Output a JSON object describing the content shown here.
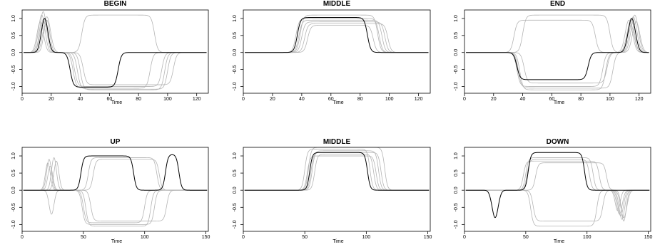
{
  "chart_data": [
    {
      "type": "line",
      "title": "BEGIN",
      "xlabel": "Time",
      "ylabel": "",
      "xlim": [
        0,
        128
      ],
      "ylim": [
        -1.2,
        1.25
      ],
      "xticks": [
        0,
        20,
        40,
        60,
        80,
        100,
        120
      ],
      "yticks": [
        -1.0,
        -0.5,
        0.0,
        0.5,
        1.0
      ],
      "grid": false,
      "series": [
        {
          "highlight": true,
          "pulses": [
            {
              "start": 11,
              "end": 20,
              "amp": 1.0,
              "shape": "bump"
            },
            {
              "start": 33,
              "end": 66,
              "amp": -1.02,
              "shape": "box"
            }
          ]
        },
        {
          "highlight": false,
          "pulses": [
            {
              "start": 10,
              "end": 19,
              "amp": 1.2,
              "shape": "bump"
            },
            {
              "start": 41,
              "end": 91,
              "amp": 1.1,
              "shape": "box"
            }
          ]
        },
        {
          "highlight": false,
          "pulses": [
            {
              "start": 9,
              "end": 18,
              "amp": 1.1,
              "shape": "bump"
            },
            {
              "start": 36,
              "end": 96,
              "amp": -1.0,
              "shape": "box"
            }
          ]
        },
        {
          "highlight": false,
          "pulses": [
            {
              "start": 12,
              "end": 22,
              "amp": 1.05,
              "shape": "bump"
            },
            {
              "start": 38,
              "end": 100,
              "amp": -1.08,
              "shape": "box"
            }
          ]
        },
        {
          "highlight": false,
          "pulses": [
            {
              "start": 13,
              "end": 21,
              "amp": 0.95,
              "shape": "bump"
            },
            {
              "start": 42,
              "end": 104,
              "amp": -0.95,
              "shape": "box"
            }
          ]
        },
        {
          "highlight": false,
          "pulses": [
            {
              "start": 8,
              "end": 17,
              "amp": 0.9,
              "shape": "bump"
            },
            {
              "start": 35,
              "end": 88,
              "amp": -1.05,
              "shape": "box"
            }
          ]
        },
        {
          "highlight": false,
          "pulses": [
            {
              "start": 10,
              "end": 20,
              "amp": 1.0,
              "shape": "bump"
            },
            {
              "start": 40,
              "end": 98,
              "amp": -1.1,
              "shape": "box"
            }
          ]
        }
      ]
    },
    {
      "type": "line",
      "title": "MIDDLE",
      "xlabel": "Time",
      "ylabel": "",
      "xlim": [
        0,
        128
      ],
      "ylim": [
        -1.2,
        1.25
      ],
      "xticks": [
        0,
        20,
        40,
        60,
        80,
        100,
        120
      ],
      "yticks": [
        -1.0,
        -0.5,
        0.0,
        0.5,
        1.0
      ],
      "grid": false,
      "series": [
        {
          "highlight": true,
          "pulses": [
            {
              "start": 37,
              "end": 85,
              "amp": 1.03,
              "shape": "box"
            }
          ]
        },
        {
          "highlight": false,
          "pulses": [
            {
              "start": 36,
              "end": 93,
              "amp": 1.0,
              "shape": "box"
            }
          ]
        },
        {
          "highlight": false,
          "pulses": [
            {
              "start": 38,
              "end": 95,
              "amp": 0.95,
              "shape": "box"
            }
          ]
        },
        {
          "highlight": false,
          "pulses": [
            {
              "start": 40,
              "end": 97,
              "amp": 0.9,
              "shape": "box"
            }
          ]
        },
        {
          "highlight": false,
          "pulses": [
            {
              "start": 42,
              "end": 99,
              "amp": 0.85,
              "shape": "box"
            }
          ]
        },
        {
          "highlight": false,
          "pulses": [
            {
              "start": 39,
              "end": 92,
              "amp": 1.1,
              "shape": "box"
            }
          ]
        },
        {
          "highlight": false,
          "pulses": [
            {
              "start": 44,
              "end": 89,
              "amp": 0.8,
              "shape": "box"
            }
          ]
        }
      ]
    },
    {
      "type": "line",
      "title": "END",
      "xlabel": "Time",
      "ylabel": "",
      "xlim": [
        0,
        128
      ],
      "ylim": [
        -1.2,
        1.25
      ],
      "xticks": [
        0,
        20,
        40,
        60,
        80,
        100,
        120
      ],
      "yticks": [
        -1.0,
        -0.5,
        0.0,
        0.5,
        1.0
      ],
      "grid": false,
      "series": [
        {
          "highlight": true,
          "pulses": [
            {
              "start": 36,
              "end": 85,
              "amp": -0.8,
              "shape": "box"
            },
            {
              "start": 110,
              "end": 120,
              "amp": 1.0,
              "shape": "bump"
            }
          ]
        },
        {
          "highlight": false,
          "pulses": [
            {
              "start": 36,
              "end": 95,
              "amp": -1.0,
              "shape": "box"
            },
            {
              "start": 108,
              "end": 118,
              "amp": 0.95,
              "shape": "bump"
            }
          ]
        },
        {
          "highlight": false,
          "pulses": [
            {
              "start": 38,
              "end": 97,
              "amp": -1.1,
              "shape": "box"
            },
            {
              "start": 111,
              "end": 121,
              "amp": 1.05,
              "shape": "bump"
            }
          ]
        },
        {
          "highlight": false,
          "pulses": [
            {
              "start": 40,
              "end": 100,
              "amp": 1.1,
              "shape": "box"
            },
            {
              "start": 113,
              "end": 123,
              "amp": 0.9,
              "shape": "bump"
            }
          ]
        },
        {
          "highlight": false,
          "pulses": [
            {
              "start": 37,
              "end": 102,
              "amp": -1.05,
              "shape": "box"
            },
            {
              "start": 109,
              "end": 119,
              "amp": 0.85,
              "shape": "bump"
            }
          ]
        },
        {
          "highlight": false,
          "pulses": [
            {
              "start": 34,
              "end": 90,
              "amp": 0.95,
              "shape": "box"
            },
            {
              "start": 112,
              "end": 122,
              "amp": 1.1,
              "shape": "bump"
            }
          ]
        },
        {
          "highlight": false,
          "pulses": [
            {
              "start": 41,
              "end": 98,
              "amp": -0.9,
              "shape": "box"
            },
            {
              "start": 110,
              "end": 119,
              "amp": 1.0,
              "shape": "bump"
            }
          ]
        }
      ]
    },
    {
      "type": "line",
      "title": "UP",
      "xlabel": "Time",
      "ylabel": "",
      "xlim": [
        0,
        152
      ],
      "ylim": [
        -1.2,
        1.25
      ],
      "xticks": [
        0,
        50,
        100,
        150
      ],
      "yticks": [
        -1.0,
        -0.5,
        0.0,
        0.5,
        1.0
      ],
      "grid": false,
      "series": [
        {
          "highlight": true,
          "pulses": [
            {
              "start": 48,
              "end": 91,
              "amp": 1.0,
              "shape": "box"
            },
            {
              "start": 117,
              "end": 128,
              "amp": 1.05,
              "shape": "box"
            }
          ]
        },
        {
          "highlight": false,
          "pulses": [
            {
              "start": 18,
              "end": 26,
              "amp": 0.9,
              "shape": "bump"
            },
            {
              "start": 50,
              "end": 100,
              "amp": -0.95,
              "shape": "box"
            }
          ]
        },
        {
          "highlight": false,
          "pulses": [
            {
              "start": 20,
              "end": 28,
              "amp": -0.7,
              "shape": "bump"
            },
            {
              "start": 52,
              "end": 105,
              "amp": -1.05,
              "shape": "box"
            }
          ]
        },
        {
          "highlight": false,
          "pulses": [
            {
              "start": 22,
              "end": 30,
              "amp": 0.95,
              "shape": "bump"
            },
            {
              "start": 54,
              "end": 110,
              "amp": 0.95,
              "shape": "box"
            }
          ]
        },
        {
          "highlight": false,
          "pulses": [
            {
              "start": 17,
              "end": 25,
              "amp": 0.8,
              "shape": "bump"
            },
            {
              "start": 56,
              "end": 118,
              "amp": -0.9,
              "shape": "box"
            }
          ]
        },
        {
          "highlight": false,
          "pulses": [
            {
              "start": 24,
              "end": 32,
              "amp": 0.85,
              "shape": "bump"
            },
            {
              "start": 49,
              "end": 108,
              "amp": -1.0,
              "shape": "box"
            }
          ]
        },
        {
          "highlight": false,
          "pulses": [
            {
              "start": 19,
              "end": 27,
              "amp": 0.7,
              "shape": "bump"
            },
            {
              "start": 58,
              "end": 112,
              "amp": 0.9,
              "shape": "box"
            }
          ]
        }
      ]
    },
    {
      "type": "line",
      "title": "MIDDLE",
      "xlabel": "Time",
      "ylabel": "",
      "xlim": [
        0,
        152
      ],
      "ylim": [
        -1.2,
        1.25
      ],
      "xticks": [
        0,
        50,
        100,
        150
      ],
      "yticks": [
        -1.0,
        -0.5,
        0.0,
        0.5,
        1.0
      ],
      "grid": false,
      "series": [
        {
          "highlight": true,
          "pulses": [
            {
              "start": 54,
              "end": 101,
              "amp": 1.1,
              "shape": "box"
            }
          ]
        },
        {
          "highlight": false,
          "pulses": [
            {
              "start": 50,
              "end": 103,
              "amp": 1.2,
              "shape": "box"
            }
          ]
        },
        {
          "highlight": false,
          "pulses": [
            {
              "start": 52,
              "end": 108,
              "amp": 1.0,
              "shape": "box"
            }
          ]
        },
        {
          "highlight": false,
          "pulses": [
            {
              "start": 56,
              "end": 110,
              "amp": 1.15,
              "shape": "box"
            }
          ]
        },
        {
          "highlight": false,
          "pulses": [
            {
              "start": 53,
              "end": 115,
              "amp": 1.25,
              "shape": "box"
            }
          ]
        },
        {
          "highlight": false,
          "pulses": [
            {
              "start": 58,
              "end": 106,
              "amp": 1.05,
              "shape": "box"
            }
          ]
        },
        {
          "highlight": false,
          "pulses": [
            {
              "start": 55,
              "end": 112,
              "amp": 1.1,
              "shape": "box"
            }
          ]
        }
      ]
    },
    {
      "type": "line",
      "title": "DOWN",
      "xlabel": "Time",
      "ylabel": "",
      "xlim": [
        0,
        152
      ],
      "ylim": [
        -1.2,
        1.25
      ],
      "xticks": [
        0,
        50,
        100,
        150
      ],
      "yticks": [
        -1.0,
        -0.5,
        0.0,
        0.5,
        1.0
      ],
      "grid": false,
      "series": [
        {
          "highlight": true,
          "pulses": [
            {
              "start": 20,
              "end": 30,
              "amp": -0.8,
              "shape": "bump"
            },
            {
              "start": 52,
              "end": 98,
              "amp": 1.1,
              "shape": "box"
            }
          ]
        },
        {
          "highlight": false,
          "pulses": [
            {
              "start": 50,
              "end": 105,
              "amp": 0.95,
              "shape": "box"
            },
            {
              "start": 122,
              "end": 131,
              "amp": -0.7,
              "shape": "bump"
            }
          ]
        },
        {
          "highlight": false,
          "pulses": [
            {
              "start": 54,
              "end": 108,
              "amp": -1.05,
              "shape": "box"
            },
            {
              "start": 124,
              "end": 133,
              "amp": -0.85,
              "shape": "bump"
            }
          ]
        },
        {
          "highlight": false,
          "pulses": [
            {
              "start": 48,
              "end": 110,
              "amp": 0.85,
              "shape": "box"
            },
            {
              "start": 126,
              "end": 134,
              "amp": -0.9,
              "shape": "bump"
            }
          ]
        },
        {
          "highlight": false,
          "pulses": [
            {
              "start": 56,
              "end": 113,
              "amp": -0.9,
              "shape": "box"
            },
            {
              "start": 121,
              "end": 129,
              "amp": -0.6,
              "shape": "bump"
            }
          ]
        },
        {
          "highlight": false,
          "pulses": [
            {
              "start": 51,
              "end": 102,
              "amp": 0.9,
              "shape": "box"
            },
            {
              "start": 123,
              "end": 132,
              "amp": -0.75,
              "shape": "bump"
            }
          ]
        },
        {
          "highlight": false,
          "pulses": [
            {
              "start": 58,
              "end": 116,
              "amp": 0.8,
              "shape": "box"
            },
            {
              "start": 125,
              "end": 135,
              "amp": -0.8,
              "shape": "bump"
            }
          ]
        }
      ]
    }
  ],
  "colors": {
    "highlight": "#000000",
    "background_series": "#b4b4b4",
    "axis": "#000000"
  }
}
